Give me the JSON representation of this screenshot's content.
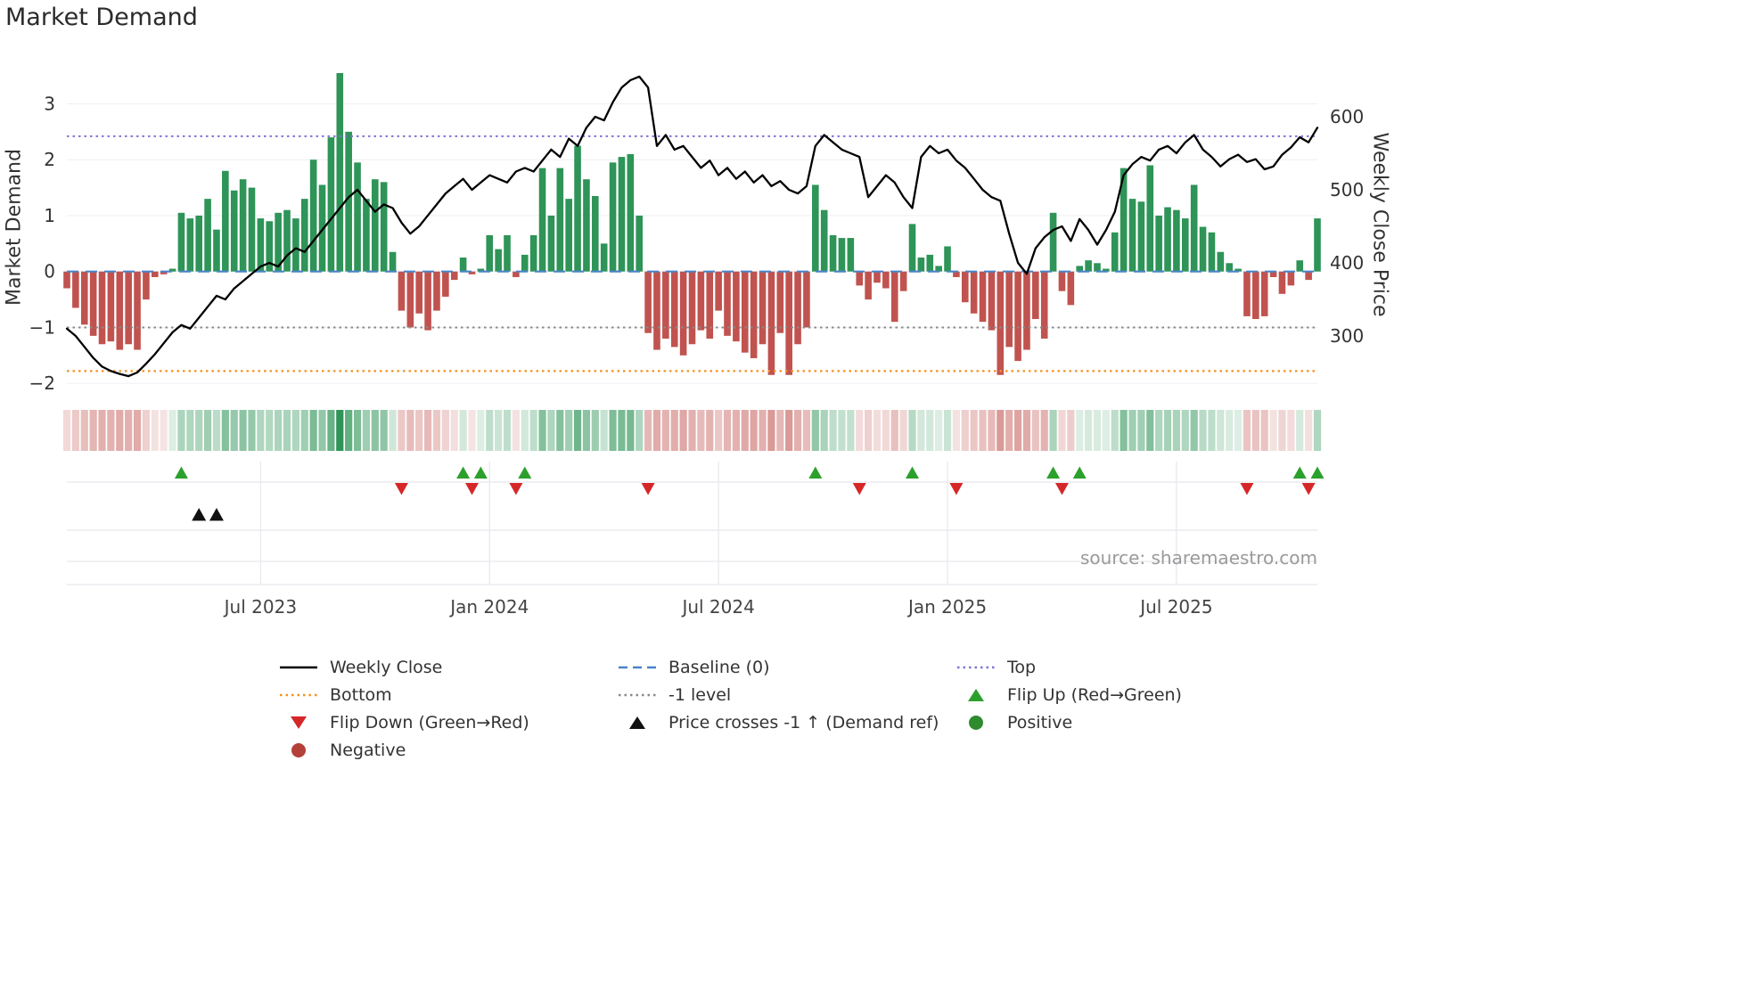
{
  "title": "Market Demand",
  "axes": {
    "left_label": "Market Demand",
    "right_label": "Weekly Close Price"
  },
  "source": "source: sharemaestro.com",
  "colors": {
    "positive_bar": "#2e9457",
    "negative_bar": "#c0534f",
    "price_line": "#000000",
    "baseline": "#4a84c8",
    "top_line": "#7b74d8",
    "bottom_line": "#f59120",
    "minus1_line": "#8a8a8a",
    "flip_up": "#2ca02c",
    "flip_down": "#d62728",
    "price_cross": "#111111",
    "positive_dot": "#2e8b2e",
    "negative_dot": "#b4403a",
    "gridline": "#eef1f6",
    "panel_gridline": "#e7e7ee",
    "tick_text": "#333333",
    "x_tick_text": "#444444"
  },
  "chart_data": {
    "type": "bar+line",
    "title": "Market Demand",
    "ylabel_left": "Market Demand",
    "ylabel_right": "Weekly Close Price",
    "series_names": [
      "Market Demand (weekly bars)",
      "Weekly Close (price line)"
    ],
    "left_axis": {
      "range": [
        -2.3,
        3.9
      ],
      "ticks": [
        {
          "value": 3,
          "label": "3"
        },
        {
          "value": 2,
          "label": "2"
        },
        {
          "value": 1,
          "label": "1"
        },
        {
          "value": 0,
          "label": "0"
        },
        {
          "value": -1,
          "label": "−1"
        },
        {
          "value": -2,
          "label": "−2"
        }
      ]
    },
    "right_axis": {
      "range": [
        212,
        687
      ],
      "ticks": [
        {
          "value": 600,
          "label": "600"
        },
        {
          "value": 500,
          "label": "500"
        },
        {
          "value": 400,
          "label": "400"
        },
        {
          "value": 300,
          "label": "300"
        }
      ]
    },
    "x_axis": {
      "ticks": [
        {
          "week": 22,
          "label": "Jul 2023"
        },
        {
          "week": 48,
          "label": "Jan 2024"
        },
        {
          "week": 74,
          "label": "Jul 2024"
        },
        {
          "week": 100,
          "label": "Jan 2025"
        },
        {
          "week": 126,
          "label": "Jul 2025"
        }
      ]
    },
    "ref_lines": {
      "baseline": 0,
      "top": 2.42,
      "bottom": -1.78,
      "minus1": -1
    },
    "demand": [
      -0.3,
      -0.65,
      -0.95,
      -1.15,
      -1.3,
      -1.25,
      -1.4,
      -1.3,
      -1.4,
      -0.5,
      -0.1,
      -0.05,
      0.05,
      1.05,
      0.95,
      1.0,
      1.3,
      0.75,
      1.8,
      1.45,
      1.65,
      1.5,
      0.95,
      0.9,
      1.05,
      1.1,
      0.95,
      1.3,
      2.0,
      1.55,
      2.4,
      3.55,
      2.5,
      1.95,
      1.3,
      1.65,
      1.6,
      0.35,
      -0.7,
      -1.0,
      -0.75,
      -1.05,
      -0.7,
      -0.45,
      -0.15,
      0.25,
      -0.05,
      0.05,
      0.65,
      0.4,
      0.65,
      -0.1,
      0.3,
      0.65,
      1.85,
      1.0,
      1.85,
      1.3,
      2.25,
      1.65,
      1.35,
      0.5,
      1.95,
      2.05,
      2.1,
      1.0,
      -1.1,
      -1.4,
      -1.2,
      -1.35,
      -1.5,
      -1.3,
      -1.05,
      -1.2,
      -0.7,
      -1.15,
      -1.25,
      -1.45,
      -1.55,
      -1.3,
      -1.85,
      -1.1,
      -1.85,
      -1.3,
      -1.0,
      1.55,
      1.1,
      0.65,
      0.6,
      0.6,
      -0.25,
      -0.5,
      -0.2,
      -0.3,
      -0.9,
      -0.35,
      0.85,
      0.25,
      0.3,
      0.1,
      0.45,
      -0.1,
      -0.55,
      -0.75,
      -0.9,
      -1.05,
      -1.85,
      -1.35,
      -1.6,
      -1.4,
      -0.85,
      -1.2,
      1.05,
      -0.35,
      -0.6,
      0.1,
      0.2,
      0.15,
      0.05,
      0.7,
      1.85,
      1.3,
      1.25,
      1.9,
      1.0,
      1.15,
      1.1,
      0.95,
      1.55,
      0.8,
      0.7,
      0.35,
      0.15,
      0.05,
      -0.8,
      -0.85,
      -0.8,
      -0.1,
      -0.4,
      -0.25,
      0.2,
      -0.15,
      0.95
    ],
    "price": [
      310,
      300,
      285,
      270,
      258,
      252,
      248,
      245,
      250,
      262,
      275,
      290,
      305,
      315,
      310,
      325,
      340,
      355,
      350,
      365,
      375,
      385,
      395,
      400,
      395,
      410,
      420,
      415,
      430,
      445,
      460,
      475,
      490,
      500,
      485,
      470,
      480,
      475,
      455,
      440,
      450,
      465,
      480,
      495,
      505,
      515,
      500,
      510,
      520,
      515,
      510,
      525,
      530,
      525,
      540,
      555,
      545,
      570,
      560,
      585,
      600,
      595,
      620,
      640,
      650,
      655,
      640,
      560,
      575,
      555,
      560,
      545,
      530,
      540,
      520,
      530,
      515,
      525,
      510,
      520,
      505,
      512,
      500,
      495,
      505,
      560,
      575,
      565,
      555,
      550,
      545,
      490,
      505,
      520,
      510,
      490,
      475,
      545,
      560,
      550,
      555,
      540,
      530,
      515,
      500,
      490,
      485,
      440,
      400,
      385,
      420,
      435,
      445,
      450,
      430,
      460,
      445,
      425,
      445,
      470,
      520,
      535,
      545,
      540,
      555,
      560,
      550,
      565,
      575,
      555,
      545,
      532,
      542,
      548,
      538,
      542,
      528,
      532,
      548,
      558,
      572,
      565,
      585
    ],
    "markers": {
      "flip_up_weeks": [
        13,
        45,
        47,
        52,
        85,
        96,
        112,
        115,
        140,
        142
      ],
      "flip_down_weeks": [
        38,
        46,
        51,
        66,
        90,
        101,
        113,
        134,
        141
      ],
      "price_cross_weeks": [
        15,
        17
      ]
    }
  },
  "legend": {
    "items": [
      {
        "id": "weekly-close",
        "label": "Weekly Close",
        "swatch": "line-solid",
        "color": "#000000",
        "icon": "solid-line-icon"
      },
      {
        "id": "baseline",
        "label": "Baseline (0)",
        "swatch": "line-dashed",
        "color": "#4a84c8",
        "icon": "dashed-line-icon"
      },
      {
        "id": "top",
        "label": "Top",
        "swatch": "line-dotted",
        "color": "#7b74d8",
        "icon": "dotted-line-icon"
      },
      {
        "id": "bottom",
        "label": "Bottom",
        "swatch": "line-dotted",
        "color": "#f59120",
        "icon": "dotted-line-icon"
      },
      {
        "id": "minus1-level",
        "label": "-1 level",
        "swatch": "line-dotted",
        "color": "#8a8a8a",
        "icon": "dotted-line-icon"
      },
      {
        "id": "flip-up",
        "label": "Flip Up (Red→Green)",
        "swatch": "triangle-up",
        "color": "#2ca02c",
        "icon": "triangle-up-icon"
      },
      {
        "id": "flip-down",
        "label": "Flip Down (Green→Red)",
        "swatch": "triangle-down",
        "color": "#d62728",
        "icon": "triangle-down-icon"
      },
      {
        "id": "price-cross",
        "label": "Price crosses -1 ↑ (Demand ref)",
        "swatch": "triangle-up",
        "color": "#111111",
        "icon": "triangle-up-icon"
      },
      {
        "id": "positive",
        "label": "Positive",
        "swatch": "circle",
        "color": "#2e8b2e",
        "icon": "circle-icon"
      },
      {
        "id": "negative",
        "label": "Negative",
        "swatch": "circle",
        "color": "#b4403a",
        "icon": "circle-icon"
      }
    ]
  }
}
